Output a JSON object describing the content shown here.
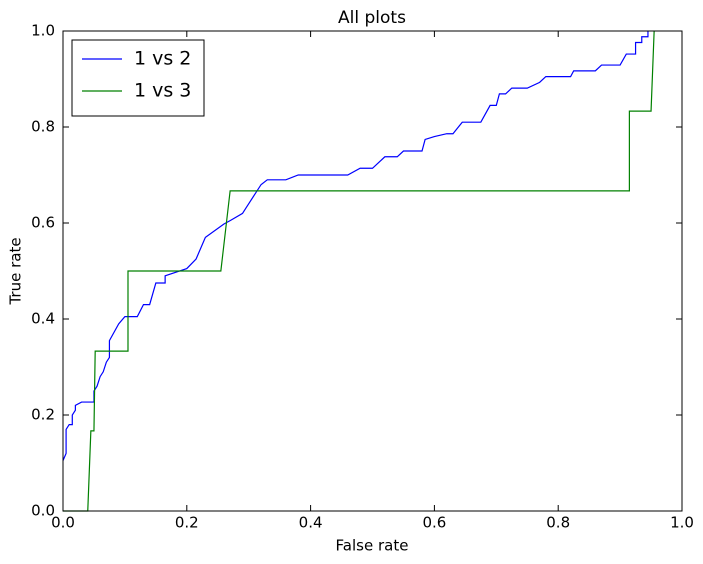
{
  "chart_data": {
    "type": "line",
    "title": "All plots",
    "x_label": "False rate",
    "y_label": "True rate",
    "xlim": [
      0,
      1
    ],
    "ylim": [
      0,
      1
    ],
    "xticks": [
      {
        "value": 0,
        "label": "0.0"
      },
      0.2,
      0.4,
      0.6,
      0.8,
      {
        "value": 1,
        "label": "1.0"
      }
    ],
    "yticks": [
      {
        "value": 0,
        "label": "0.0"
      },
      0.2,
      0.4,
      0.6,
      0.8,
      {
        "value": 1,
        "label": "1.0"
      }
    ],
    "legend": "upper-left",
    "series": [
      {
        "name": "1 vs 2",
        "color": "#0000ff",
        "x": [
          0,
          0.005,
          0.005,
          0.01,
          0.015,
          0.015,
          0.02,
          0.02,
          0.03,
          0.05,
          0.05,
          0.055,
          0.06,
          0.065,
          0.07,
          0.075,
          0.075,
          0.09,
          0.1,
          0.12,
          0.13,
          0.14,
          0.15,
          0.165,
          0.165,
          0.2,
          0.215,
          0.23,
          0.26,
          0.27,
          0.29,
          0.295,
          0.32,
          0.33,
          0.36,
          0.38,
          0.46,
          0.48,
          0.5,
          0.52,
          0.54,
          0.55,
          0.58,
          0.585,
          0.6,
          0.62,
          0.63,
          0.645,
          0.675,
          0.69,
          0.7,
          0.705,
          0.715,
          0.725,
          0.75,
          0.77,
          0.78,
          0.82,
          0.825,
          0.86,
          0.87,
          0.9,
          0.91,
          0.925,
          0.925,
          0.935,
          0.935,
          0.945,
          0.945
        ],
        "values": [
          0.105,
          0.12,
          0.17,
          0.18,
          0.18,
          0.2,
          0.21,
          0.22,
          0.227,
          0.227,
          0.25,
          0.26,
          0.28,
          0.29,
          0.31,
          0.32,
          0.355,
          0.39,
          0.405,
          0.405,
          0.43,
          0.43,
          0.475,
          0.475,
          0.49,
          0.505,
          0.525,
          0.57,
          0.598,
          0.605,
          0.62,
          0.63,
          0.68,
          0.69,
          0.69,
          0.7,
          0.7,
          0.714,
          0.714,
          0.738,
          0.738,
          0.75,
          0.75,
          0.774,
          0.78,
          0.786,
          0.786,
          0.81,
          0.81,
          0.845,
          0.845,
          0.869,
          0.869,
          0.881,
          0.881,
          0.893,
          0.905,
          0.905,
          0.917,
          0.917,
          0.929,
          0.929,
          0.952,
          0.952,
          0.976,
          0.976,
          0.988,
          0.988,
          1.0
        ]
      },
      {
        "name": "1 vs 3",
        "color": "#008000",
        "x": [
          0,
          0.04,
          0.045,
          0.05,
          0.052,
          0.105,
          0.105,
          0.255,
          0.27,
          0.915,
          0.915,
          0.95,
          0.955
        ],
        "values": [
          0,
          0,
          0.167,
          0.167,
          0.333,
          0.333,
          0.5,
          0.5,
          0.667,
          0.667,
          0.833,
          0.833,
          1.0
        ]
      }
    ]
  }
}
